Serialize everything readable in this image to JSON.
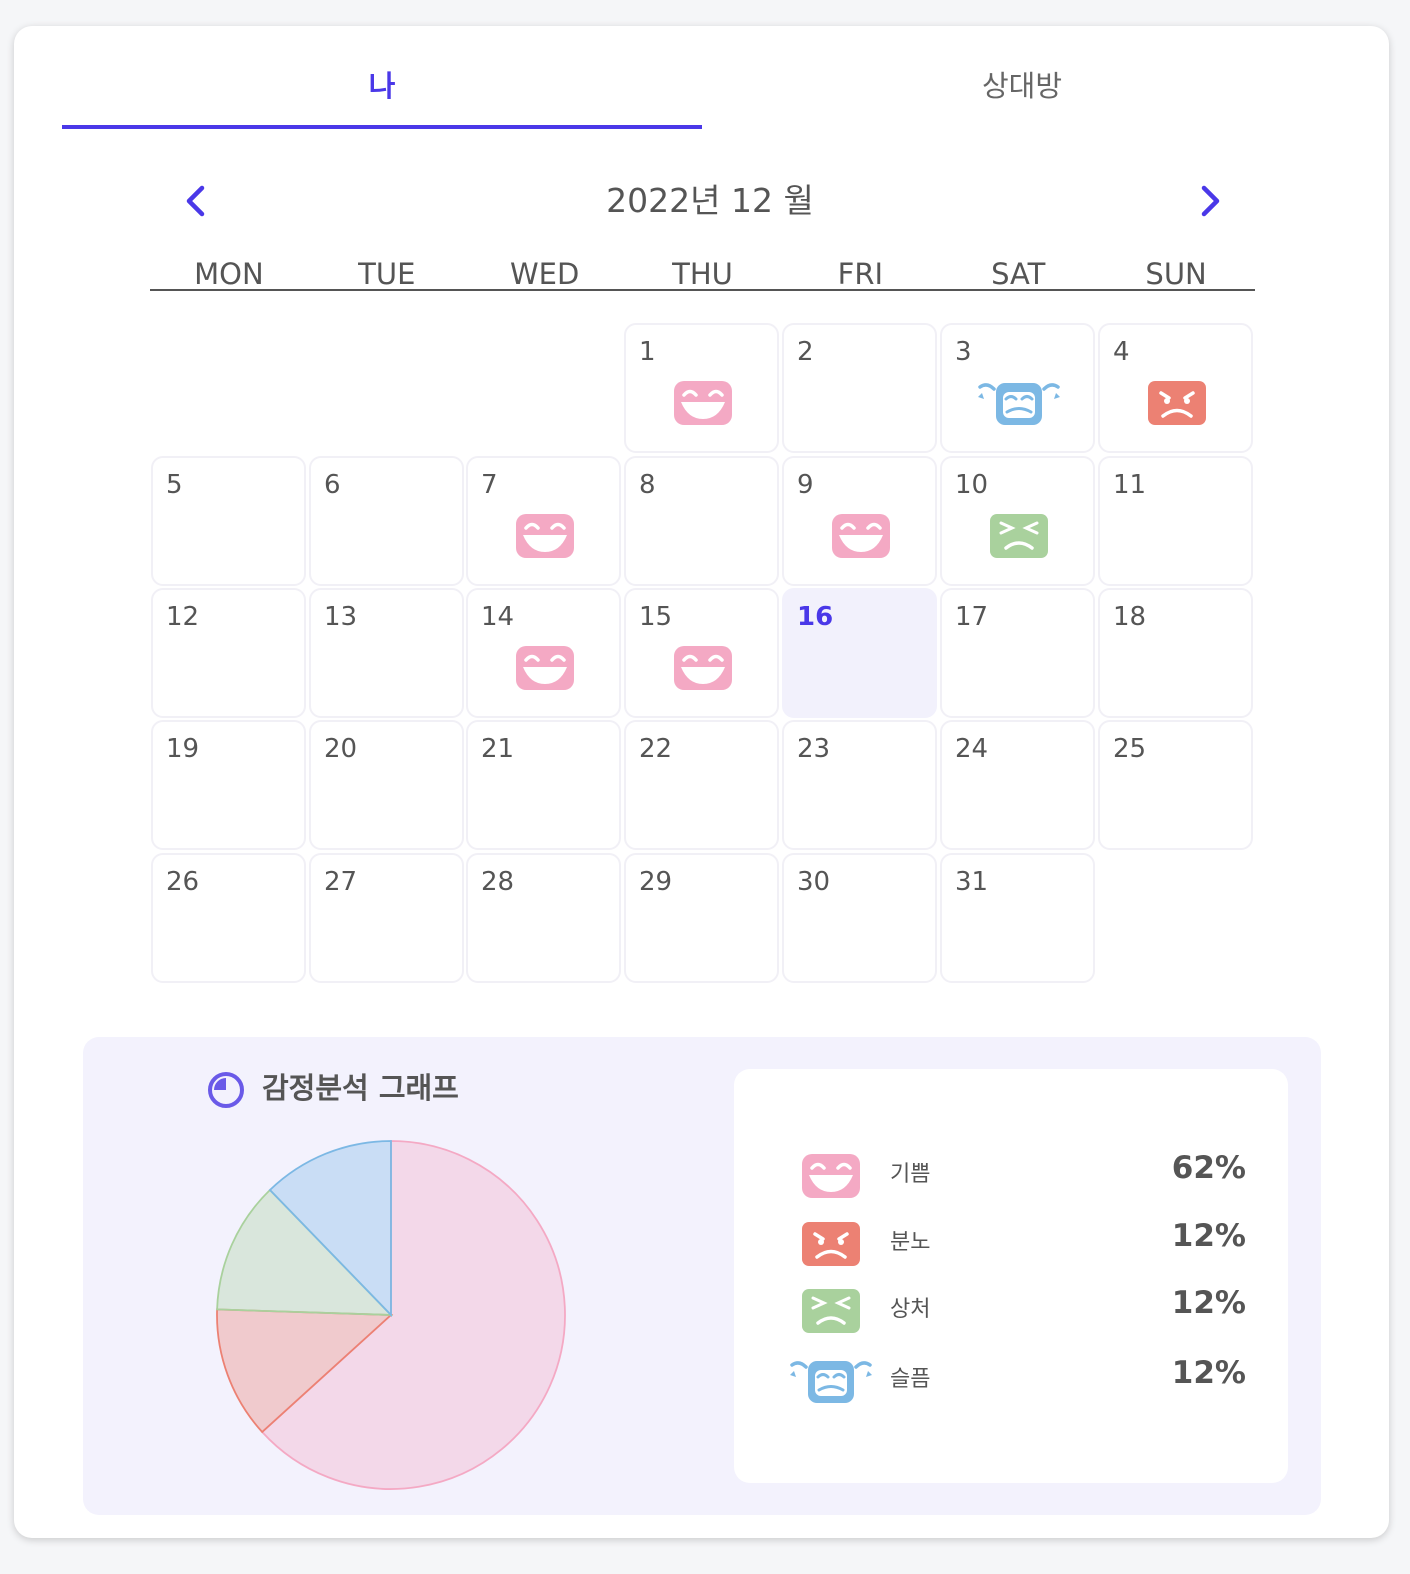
{
  "tabs": {
    "me": "나",
    "other": "상대방"
  },
  "calendar": {
    "title": "2022년  12 월",
    "weekdays": [
      "MON",
      "TUE",
      "WED",
      "THU",
      "FRI",
      "SAT",
      "SUN"
    ],
    "today": 16,
    "days_marked": {
      "1": "joy-icon",
      "3": "sadness-icon",
      "4": "anger-icon",
      "7": "joy-icon",
      "9": "joy-icon",
      "10": "hurt-icon",
      "14": "joy-icon",
      "15": "joy-icon"
    }
  },
  "analysis": {
    "title": "감정분석 그래프",
    "items": [
      {
        "label": "기쁨",
        "percent": "62%",
        "icon": "joy-icon",
        "color": "#f4a9c4"
      },
      {
        "label": "분노",
        "percent": "12%",
        "icon": "anger-icon",
        "color": "#ec8173"
      },
      {
        "label": "상처",
        "percent": "12%",
        "icon": "hurt-icon",
        "color": "#a9d19d"
      },
      {
        "label": "슬픔",
        "percent": "12%",
        "icon": "sadness-icon",
        "color": "#7cb8e4"
      }
    ]
  },
  "chart_data": {
    "type": "pie",
    "categories": [
      "기쁨",
      "분노",
      "상처",
      "슬픔"
    ],
    "values": [
      62,
      12,
      12,
      12
    ],
    "colors": [
      "#f4a9c4",
      "#ec8173",
      "#a9d19d",
      "#7cb8e4"
    ]
  },
  "colors": {
    "accent": "#4a38e8",
    "today_bg": "#f2f1fc",
    "panel_bg": "#f3f2fd"
  }
}
